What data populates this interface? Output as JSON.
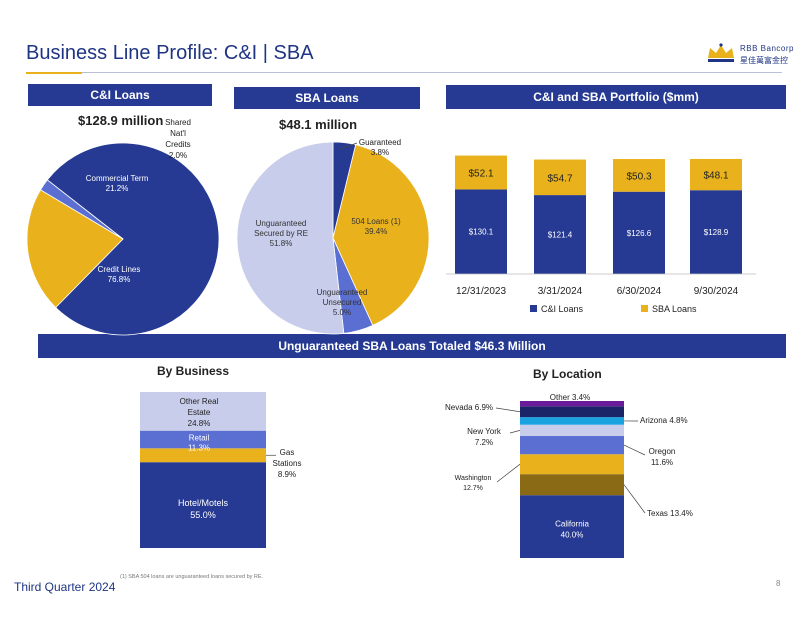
{
  "header": {
    "title": "Business Line Profile:  C&I | SBA",
    "logo_name": "RBB Bancorp",
    "logo_cn": "星佳萬富金控"
  },
  "sections": {
    "ci_loans": "C&I Loans",
    "sba_loans": "SBA Loans",
    "portfolio": "C&I and SBA Portfolio ($mm)",
    "unguaranteed": "Unguaranteed SBA Loans Totaled $46.3 Million",
    "by_business": "By Business",
    "by_location": "By Location"
  },
  "footer": {
    "quarter": "Third Quarter 2024",
    "footnote": "(1)     SBA 504 loans are unguaranteed loans secured by RE.",
    "page": "8"
  },
  "colors": {
    "navy": "#263a93",
    "gold": "#e9b21c",
    "periwinkle": "#5a6fd1",
    "lavender": "#c7cdea"
  },
  "chart_data": [
    {
      "type": "pie",
      "title": "$128.9 million",
      "slices": [
        {
          "label": "Credit Lines",
          "value": 76.8,
          "display": "76.8%",
          "color": "#263a93"
        },
        {
          "label": "Commercial Term",
          "value": 21.2,
          "display": "21.2%",
          "color": "#e9b21c"
        },
        {
          "label": "Shared Nat'l Credits",
          "value": 2.0,
          "display": "2.0%",
          "color": "#5a6fd1"
        }
      ]
    },
    {
      "type": "pie",
      "title": "$48.1 million",
      "slices": [
        {
          "label": "Guaranteed",
          "value": 3.8,
          "display": "3.8%",
          "color": "#263a93"
        },
        {
          "label": "504 Loans (1)",
          "value": 39.4,
          "display": "39.4%",
          "color": "#e9b21c"
        },
        {
          "label": "Unguaranteed Unsecured",
          "value": 5.0,
          "display": "5.0%",
          "color": "#5a6fd1"
        },
        {
          "label": "Unguaranteed Secured by RE",
          "value": 51.8,
          "display": "51.8%",
          "color": "#c7cdea"
        }
      ]
    },
    {
      "type": "bar",
      "stacked": true,
      "categories": [
        "12/31/2023",
        "3/31/2024",
        "6/30/2024",
        "9/30/2024"
      ],
      "series": [
        {
          "name": "C&I Loans",
          "values": [
            130.1,
            121.4,
            126.6,
            128.9
          ],
          "labels": [
            "$130.1",
            "$121.4",
            "$126.6",
            "$128.9"
          ],
          "color": "#263a93"
        },
        {
          "name": "SBA Loans",
          "values": [
            52.1,
            54.7,
            50.3,
            48.1
          ],
          "labels": [
            "$52.1",
            "$54.7",
            "$50.3",
            "$48.1"
          ],
          "color": "#e9b21c"
        }
      ],
      "legend": "bottom",
      "grid": false
    },
    {
      "type": "bar",
      "stacked": true,
      "title": "By Business",
      "segments": [
        {
          "label": "Hotel/Motels",
          "value": 55.0,
          "display": "55.0%",
          "color": "#263a93"
        },
        {
          "label": "Gas Stations",
          "value": 8.9,
          "display": "8.9%",
          "color": "#e9b21c"
        },
        {
          "label": "Retail",
          "value": 11.3,
          "display": "11.3%",
          "color": "#5a6fd1"
        },
        {
          "label": "Other Real Estate",
          "value": 24.8,
          "display": "24.8%",
          "color": "#c7cdea"
        }
      ]
    },
    {
      "type": "bar",
      "stacked": true,
      "title": "By Location",
      "segments": [
        {
          "label": "California",
          "value": 40.0,
          "display": "40.0%",
          "color": "#263a93"
        },
        {
          "label": "Texas",
          "value": 13.4,
          "display": "13.4%",
          "color": "#8a6a14"
        },
        {
          "label": "Washington",
          "value": 12.7,
          "display": "12.7%",
          "color": "#e9b21c"
        },
        {
          "label": "Oregon",
          "value": 11.6,
          "display": "11.6%",
          "color": "#5a6fd1"
        },
        {
          "label": "New York",
          "value": 7.2,
          "display": "7.2%",
          "color": "#c7cdea"
        },
        {
          "label": "Arizona",
          "value": 4.8,
          "display": "4.8%",
          "color": "#1aa3e0"
        },
        {
          "label": "Nevada",
          "value": 6.9,
          "display": "6.9%",
          "color": "#1b2466"
        },
        {
          "label": "Other",
          "value": 3.4,
          "display": "3.4%",
          "color": "#6a1b9a"
        }
      ]
    }
  ]
}
